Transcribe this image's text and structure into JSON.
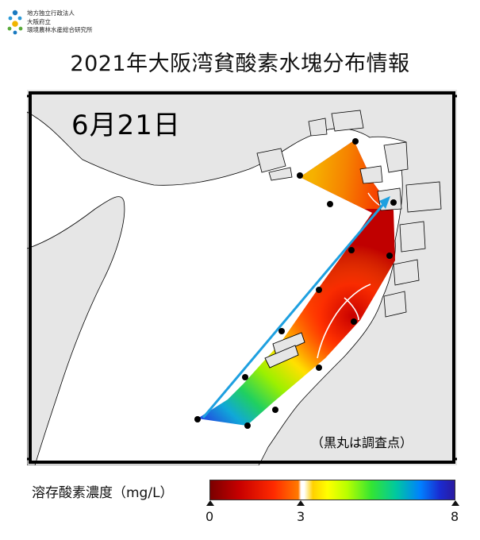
{
  "organization": {
    "line1": "地方独立行政法人",
    "line2": "大阪府立",
    "line3": "環境農林水産総合研究所"
  },
  "title": "2021年大阪湾貧酸素水塊分布情報",
  "map": {
    "date": "6月21日",
    "note": "（黒丸は調査点）"
  },
  "legend": {
    "title": "溶存酸素濃度（mg/L）",
    "ticks": [
      "0",
      "3",
      "8"
    ]
  },
  "colors": {
    "land": "#e6e6e6",
    "sea": "#ffffff",
    "transect_arrow": "#1ea0e0",
    "station": "#000000"
  }
}
